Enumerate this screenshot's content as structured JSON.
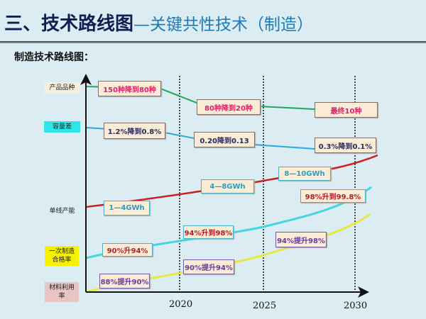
{
  "header": {
    "title_main": "三、技术路线图",
    "title_sub": "—关键共性技术（制造）",
    "subtitle": "制造技术路线图："
  },
  "roadmap": {
    "x_labels": [
      "2020",
      "2025",
      "2030"
    ],
    "rows": [
      {
        "label": "产品品种",
        "color": "#1fa85a",
        "milestones": [
          "150种降到80种",
          "80种降到20种",
          "最终10种"
        ],
        "text_color": "#e0206a"
      },
      {
        "label": "容量差",
        "color": "#2aa8e0",
        "milestones": [
          "1.2%降到0.8%",
          "0.20降到0.13",
          "0.3%降到0.1%"
        ],
        "text_color": "#2a2a60"
      },
      {
        "label": "单线产能",
        "color": "#cc1f1f",
        "milestones": [
          "1—4GWh",
          "4—8GWh",
          "8—10GWh"
        ],
        "text_color": "#2a9ec0"
      },
      {
        "label": "一次制造合格率",
        "color": "#3fd8e0",
        "milestones": [
          "90%升94%",
          "94%升到98%",
          "98%升到99.8%"
        ],
        "text_color": "#b0202a"
      },
      {
        "label": "材料利用率",
        "color": "#e8e840",
        "milestones": [
          "88%提升90%",
          "90%提升94%",
          "94%提升98%"
        ],
        "text_color": "#6a3a9a"
      }
    ]
  }
}
